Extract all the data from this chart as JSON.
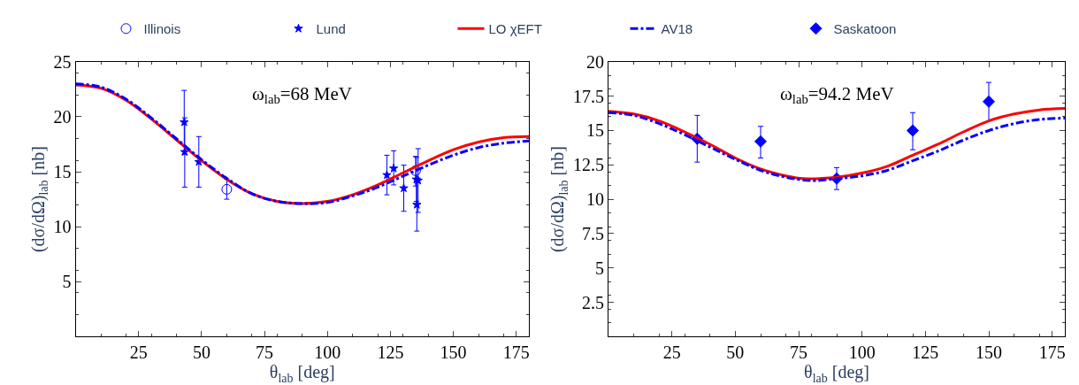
{
  "chart_data": [
    {
      "type": "line",
      "xlabel": "θ$_{lab}$ [deg]",
      "ylabel": "(dσ/dΩ)$_{lab}$ [nb]",
      "annotations": [
        "ω$_{lab}$=68 MeV"
      ],
      "xlim": [
        0,
        180
      ],
      "xticks": [
        25,
        50,
        75,
        100,
        125,
        150,
        175
      ],
      "ylim": [
        0,
        25
      ],
      "yticks": [
        5,
        10,
        15,
        20,
        25
      ],
      "legend": "top",
      "series": [
        {
          "name": "Illinois",
          "type": "scatter",
          "marker": "circle",
          "color": "#0000ff",
          "x": [
            60,
            135
          ],
          "values": [
            13.4,
            15.1
          ],
          "errors": [
            [
              12.5,
              14.3
            ],
            [
              13.7,
              16.4
            ]
          ]
        },
        {
          "name": "Lund",
          "type": "scatter",
          "marker": "star",
          "color": "#0000ff",
          "x": [
            43.1,
            43.3,
            48.9,
            123.6,
            126.3,
            130.3,
            135.3,
            135.5,
            136.0
          ],
          "values": [
            19.5,
            16.8,
            15.9,
            14.7,
            15.3,
            13.5,
            14.3,
            12.0,
            14.2
          ],
          "errors": [
            [
              16.6,
              22.4
            ],
            [
              13.6,
              19.9
            ],
            [
              13.6,
              18.2
            ],
            [
              12.9,
              16.5
            ],
            [
              13.8,
              16.9
            ],
            [
              11.4,
              15.6
            ],
            [
              12.3,
              16.3
            ],
            [
              9.6,
              14.4
            ],
            [
              11.3,
              17.1
            ]
          ]
        },
        {
          "name": "LO χEFT",
          "marker": "none",
          "line_style": "solid",
          "color": "#ff0000",
          "x": [
            0,
            10,
            20,
            30,
            40,
            50,
            60,
            70,
            80,
            90,
            100,
            110,
            120,
            130,
            140,
            150,
            160,
            170,
            180
          ],
          "values": [
            22.9,
            22.6,
            21.5,
            19.8,
            17.9,
            16.0,
            14.3,
            13.0,
            12.3,
            12.1,
            12.3,
            12.9,
            13.8,
            14.9,
            16.0,
            17.0,
            17.7,
            18.1,
            18.2
          ]
        },
        {
          "name": "AV18",
          "marker": "none",
          "line_style": "dashdot",
          "color": "#0000ff",
          "x": [
            0,
            10,
            20,
            30,
            40,
            50,
            60,
            70,
            80,
            90,
            100,
            110,
            120,
            130,
            140,
            150,
            160,
            170,
            180
          ],
          "values": [
            23.0,
            22.7,
            21.6,
            19.9,
            18.0,
            16.1,
            14.4,
            13.0,
            12.3,
            12.1,
            12.2,
            12.8,
            13.6,
            14.6,
            15.6,
            16.5,
            17.2,
            17.6,
            17.8
          ]
        }
      ]
    },
    {
      "type": "line",
      "xlabel": "θ$_{lab}$ [deg]",
      "ylabel": "(dσ/dΩ)$_{lab}$ [nb]",
      "annotations": [
        "ω$_{lab}$=94.2 MeV"
      ],
      "xlim": [
        0,
        180
      ],
      "xticks": [
        25,
        50,
        75,
        100,
        125,
        150,
        175
      ],
      "ylim": [
        0,
        20
      ],
      "yticks": [
        2.5,
        5,
        7.5,
        10,
        12.5,
        15,
        17.5,
        20
      ],
      "legend": "top",
      "series": [
        {
          "name": "Saskatoon",
          "type": "scatter",
          "marker": "diamond",
          "color": "#0000ff",
          "x": [
            35,
            60,
            90,
            120,
            150
          ],
          "values": [
            14.4,
            14.2,
            11.5,
            15.0,
            17.1
          ],
          "errors": [
            [
              12.7,
              16.1
            ],
            [
              13.0,
              15.3
            ],
            [
              10.7,
              12.3
            ],
            [
              13.6,
              16.3
            ],
            [
              15.7,
              18.5
            ]
          ]
        },
        {
          "name": "LO χEFT",
          "marker": "none",
          "line_style": "solid",
          "color": "#ff0000",
          "x": [
            0,
            10,
            20,
            30,
            40,
            50,
            60,
            70,
            77,
            90,
            100,
            110,
            120,
            130,
            140,
            150,
            160,
            170,
            180
          ],
          "values": [
            16.4,
            16.2,
            15.7,
            14.9,
            14.0,
            13.0,
            12.2,
            11.7,
            11.5,
            11.6,
            11.9,
            12.4,
            13.2,
            14.0,
            14.9,
            15.7,
            16.2,
            16.5,
            16.6
          ]
        },
        {
          "name": "AV18",
          "marker": "none",
          "line_style": "dashdot",
          "color": "#0000ff",
          "x": [
            0,
            10,
            20,
            30,
            40,
            50,
            60,
            70,
            80,
            90,
            100,
            110,
            120,
            130,
            140,
            150,
            160,
            170,
            180
          ],
          "values": [
            16.3,
            16.1,
            15.5,
            14.7,
            13.8,
            12.9,
            12.1,
            11.6,
            11.35,
            11.5,
            11.7,
            12.1,
            12.8,
            13.5,
            14.3,
            15.0,
            15.5,
            15.8,
            15.9
          ]
        }
      ]
    }
  ]
}
